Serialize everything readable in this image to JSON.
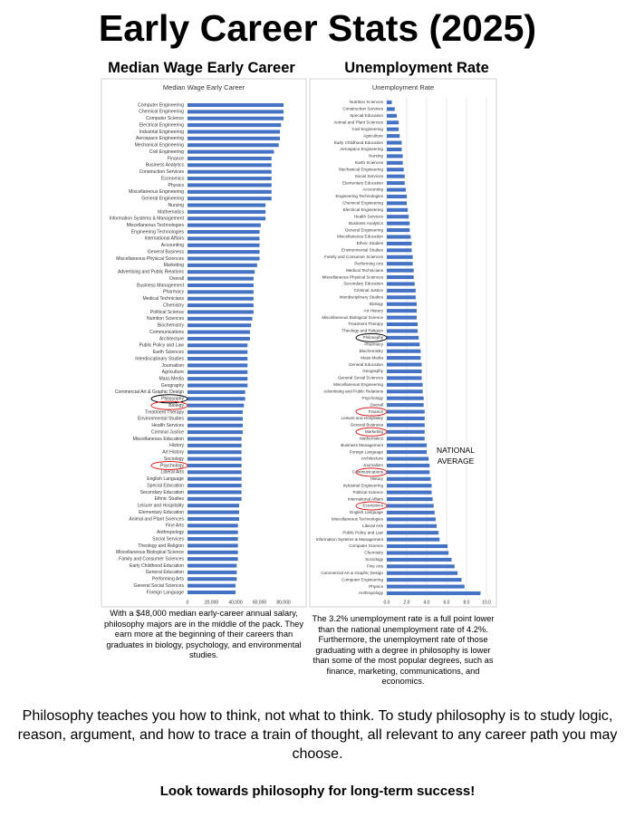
{
  "title": "Early Career Stats (2025)",
  "headings": [
    "Median Wage Early Career",
    "Unemployment Rate"
  ],
  "captions": [
    "With a $48,000 median early-career annual salary, philosophy majors are in the middle of the pack. They earn more at the beginning of their careers than graduates in biology, psychology, and environmental studies.",
    "The 3.2% unemployment rate is a full point lower than the national unemployment rate of 4.2%. Furthermore, the unemployment rate of those graduating with a degree in philosophy is lower than some of the most popular degrees, such as finance, marketing, communications, and economics."
  ],
  "paragraph": "Philosophy teaches you how to think, not what to think. To study philosophy is to study logic, reason, argument, and how to trace a train of thought, all relevant to any career path you may choose.",
  "closing": "Look towards philosophy for long-term success!",
  "chart_data": [
    {
      "type": "hbar",
      "title": "Median Wage Early Career",
      "color": "#4472c4",
      "grid": false,
      "categories": [
        "Computer Engineering",
        "Chemical Engineering",
        "Computer Science",
        "Electrical Engineering",
        "Industrial Engineering",
        "Aerospace Engineering",
        "Mechanical Engineering",
        "Civil Engineering",
        "Finance",
        "Business Analytics",
        "Construction Services",
        "Economics",
        "Physics",
        "Miscellaneous Engineering",
        "General Engineering",
        "Nursing",
        "Mathematics",
        "Information Systems & Management",
        "Miscellaneous Technologies",
        "Engineering Technologies",
        "International Affairs",
        "Accounting",
        "General Business",
        "Miscellaneous Physical Sciences",
        "Marketing",
        "Advertising and Public Relations",
        "Overall",
        "Business Management",
        "Pharmacy",
        "Medical Technicians",
        "Chemistry",
        "Political Science",
        "Nutrition Sciences",
        "Biochemistry",
        "Communications",
        "Architecture",
        "Public Policy and Law",
        "Earth Sciences",
        "Interdisciplinary Studies",
        "Journalism",
        "Agriculture",
        "Mass Media",
        "Geography",
        "Commercial Art & Graphic Design",
        "Philosophy",
        "Biology",
        "Treatment Therapy",
        "Environmental Studies",
        "Health Services",
        "Criminal Justice",
        "Miscellaneous Education",
        "History",
        "Art History",
        "Sociology",
        "Psychology",
        "Liberal Arts",
        "English Language",
        "Special Education",
        "Secondary Education",
        "Ethnic Studies",
        "Leisure and Hospitality",
        "Elementary Education",
        "Animal and Plant Sciences",
        "Fine Arts",
        "Anthropology",
        "Social Services",
        "Theology and Religion",
        "Miscellaneous Biological Science",
        "Family and Consumer Sciences",
        "Early Childhood Education",
        "General Education",
        "Performing Arts",
        "General Social Sciences",
        "Foreign Language"
      ],
      "values": [
        80000,
        80000,
        80000,
        78000,
        77000,
        77000,
        76000,
        72000,
        70000,
        70000,
        70000,
        70000,
        70000,
        70000,
        70000,
        65000,
        65000,
        65000,
        61000,
        60000,
        60000,
        60000,
        60000,
        60000,
        58000,
        56000,
        55000,
        55000,
        55000,
        55000,
        55000,
        55000,
        54000,
        53000,
        52000,
        52000,
        50000,
        50000,
        50000,
        50000,
        50000,
        50000,
        50000,
        48000,
        48000,
        47000,
        46000,
        46000,
        46000,
        46000,
        45000,
        45000,
        45000,
        45000,
        45000,
        45000,
        45000,
        45000,
        45000,
        45000,
        43000,
        43000,
        43000,
        42000,
        42000,
        42000,
        42000,
        42000,
        42000,
        41000,
        41000,
        41000,
        40000,
        40000
      ],
      "xlim": [
        0,
        80000
      ],
      "xticks": [
        0,
        {
          "value": 20000,
          "label": "20,000"
        },
        {
          "value": 40000,
          "label": "40,000"
        },
        {
          "value": 60000,
          "label": "60,000"
        },
        {
          "value": 80000,
          "label": "80,000"
        }
      ]
    },
    {
      "type": "hbar",
      "title": "Unemployment Rate",
      "color": "#4472c4",
      "grid": true,
      "annotation": "NATIONAL AVERAGE",
      "categories": [
        "Nutrition Sciences",
        "Construction Services",
        "Special Education",
        "Animal and Plant Sciences",
        "Civil Engineering",
        "Agriculture",
        "Early Childhood Education",
        "Aerospace Engineering",
        "Nursing",
        "Earth Sciences",
        "Mechanical Engineering",
        "Social Services",
        "Elementary Education",
        "Accounting",
        "Engineering Technologies",
        "Chemical Engineering",
        "Electrical Engineering",
        "Health Services",
        "Business Analytics",
        "General Engineering",
        "Miscellaneous Education",
        "Ethnic Studies",
        "Environmental Studies",
        "Family and Consumer Sciences",
        "Performing Arts",
        "Medical Technicians",
        "Miscellaneous Physical Sciences",
        "Secondary Education",
        "Criminal Justice",
        "Interdisciplinary Studies",
        "Biology",
        "Art History",
        "Miscellaneous Biological Science",
        "Treatment Therapy",
        "Theology and Religion",
        "Philosophy",
        "Pharmacy",
        "Biochemistry",
        "Mass Media",
        "General Education",
        "Geography",
        "General Social Sciences",
        "Miscellaneous Engineering",
        "Advertising and Public Relations",
        "Psychology",
        "Overall",
        "Finance",
        "Leisure and Hospitality",
        "General Business",
        "Marketing",
        "Mathematics",
        "Business Management",
        "Foreign Language",
        "Architecture",
        "Journalism",
        "Communications",
        "History",
        "Industrial Engineering",
        "Political Science",
        "International Affairs",
        "Economics",
        "English Language",
        "Miscellaneous Technologies",
        "Liberal Arts",
        "Public Policy and Law",
        "Information Systems & Management",
        "Computer Science",
        "Chemistry",
        "Sociology",
        "Fine Arts",
        "Commercial Art & Graphic Design",
        "Computer Engineering",
        "Physics",
        "Anthropology"
      ],
      "values": [
        0.5,
        0.8,
        1.0,
        1.2,
        1.2,
        1.3,
        1.5,
        1.5,
        1.6,
        1.6,
        1.7,
        1.8,
        1.8,
        1.9,
        2.0,
        2.0,
        2.1,
        2.2,
        2.3,
        2.3,
        2.4,
        2.5,
        2.5,
        2.6,
        2.6,
        2.7,
        2.7,
        2.8,
        2.9,
        2.9,
        3.0,
        3.0,
        3.0,
        3.1,
        3.1,
        3.2,
        3.3,
        3.4,
        3.4,
        3.5,
        3.5,
        3.5,
        3.6,
        3.6,
        3.7,
        3.7,
        3.8,
        3.8,
        3.8,
        3.8,
        3.8,
        4.0,
        4.0,
        4.2,
        4.3,
        4.3,
        4.4,
        4.5,
        4.5,
        4.6,
        4.7,
        4.8,
        4.9,
        5.0,
        5.2,
        5.3,
        6.1,
        6.2,
        6.5,
        6.8,
        7.1,
        7.5,
        7.8,
        9.4
      ],
      "xlim": [
        0,
        10
      ],
      "xticks": [
        {
          "value": 0,
          "label": "0.0"
        },
        {
          "value": 2,
          "label": "2.0"
        },
        {
          "value": 4,
          "label": "4.0"
        },
        {
          "value": 6,
          "label": "6.0"
        },
        {
          "value": 8,
          "label": "8.0"
        },
        {
          "value": 10,
          "label": "10.0"
        }
      ]
    }
  ]
}
